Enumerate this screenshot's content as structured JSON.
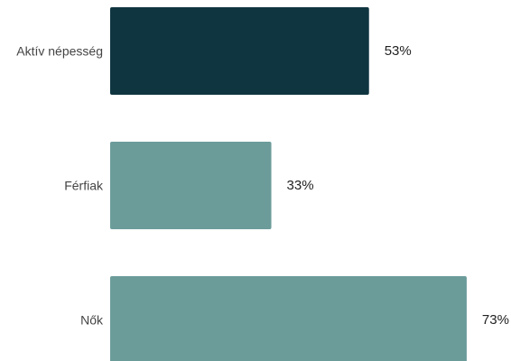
{
  "chart_data": {
    "type": "bar",
    "orientation": "horizontal",
    "categories": [
      "Aktív népesség",
      "Férfiak",
      "Nők"
    ],
    "values": [
      53,
      33,
      73
    ],
    "value_labels": [
      "53%",
      "33%",
      "73%"
    ],
    "unit": "%",
    "xlim": [
      0,
      100
    ],
    "grid": false,
    "legend": "none",
    "bar_colors": [
      "#0f3540",
      "#6b9c9a",
      "#6b9c9a"
    ]
  }
}
